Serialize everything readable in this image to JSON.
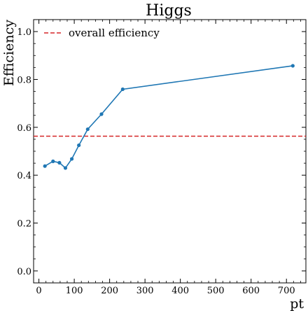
{
  "chart_data": {
    "type": "line",
    "title": "Higgs",
    "xlabel": "pt",
    "ylabel": "Efficiency",
    "xlim": [
      -15,
      755
    ],
    "ylim": [
      -0.05,
      1.05
    ],
    "xticks": [
      "0",
      "100",
      "200",
      "300",
      "400",
      "500",
      "600",
      "700"
    ],
    "yticks": [
      "0.0",
      "0.2",
      "0.4",
      "0.6",
      "0.8",
      "1.0"
    ],
    "series": [
      {
        "color": "#1f77b4",
        "x": [
          17,
          40,
          58,
          75,
          93,
          113,
          138,
          177,
          237,
          718
        ],
        "y": [
          0.438,
          0.458,
          0.452,
          0.43,
          0.468,
          0.525,
          0.592,
          0.655,
          0.759,
          0.857
        ]
      }
    ],
    "reference_line": {
      "name": "overall efficiency",
      "y": 0.563,
      "color": "#d62728",
      "style": "dashed"
    },
    "legend_position": "top-left",
    "grid": false
  }
}
